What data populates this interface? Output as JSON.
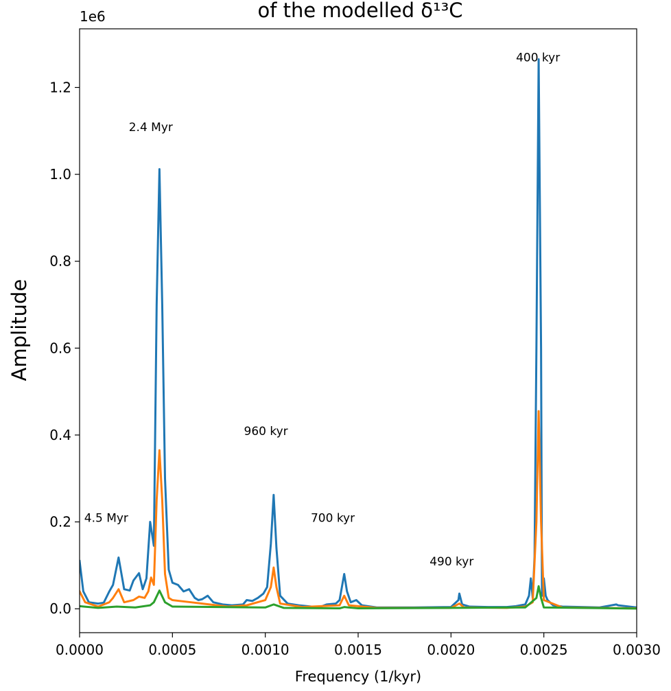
{
  "chart_data": {
    "type": "line",
    "title": "of the modelled δ¹³C",
    "xlabel": "Frequency (1/kyr)",
    "ylabel": "Amplitude",
    "y_offset_text": "1e6",
    "xlim": [
      0.0,
      0.003
    ],
    "ylim": [
      -55000,
      1335000
    ],
    "xticks": [
      0.0,
      0.0005,
      0.001,
      0.0015,
      0.002,
      0.0025,
      0.003
    ],
    "xtick_labels": [
      "0.0000",
      "0.0005",
      "0.0010",
      "0.0015",
      "0.0020",
      "0.0025",
      "0.0030"
    ],
    "yticks": [
      0,
      200000,
      400000,
      600000,
      800000,
      1000000,
      1200000
    ],
    "ytick_labels": [
      "0.0",
      "0.2",
      "0.4",
      "0.6",
      "0.8",
      "1.0",
      "1.2"
    ],
    "grid": false,
    "series": [
      {
        "color": "#1f77b4",
        "points": [
          [
            0.0,
            110000
          ],
          [
            2e-05,
            40000
          ],
          [
            5e-05,
            15000
          ],
          [
            0.0001,
            12000
          ],
          [
            0.00013,
            14000
          ],
          [
            0.00016,
            40000
          ],
          [
            0.00018,
            55000
          ],
          [
            0.00021,
            118000
          ],
          [
            0.00024,
            45000
          ],
          [
            0.00027,
            42000
          ],
          [
            0.00029,
            65000
          ],
          [
            0.00032,
            82000
          ],
          [
            0.00034,
            45000
          ],
          [
            0.00036,
            70000
          ],
          [
            0.00038,
            200000
          ],
          [
            0.0004,
            145000
          ],
          [
            0.000415,
            700000
          ],
          [
            0.00043,
            1012000
          ],
          [
            0.000445,
            700000
          ],
          [
            0.00046,
            300000
          ],
          [
            0.00048,
            90000
          ],
          [
            0.0005,
            60000
          ],
          [
            0.00053,
            55000
          ],
          [
            0.00056,
            40000
          ],
          [
            0.00059,
            45000
          ],
          [
            0.00062,
            25000
          ],
          [
            0.00064,
            20000
          ],
          [
            0.00066,
            22000
          ],
          [
            0.00069,
            30000
          ],
          [
            0.00072,
            15000
          ],
          [
            0.00077,
            10000
          ],
          [
            0.00082,
            8000
          ],
          [
            0.00088,
            10000
          ],
          [
            0.0009,
            20000
          ],
          [
            0.00093,
            18000
          ],
          [
            0.00096,
            25000
          ],
          [
            0.00099,
            35000
          ],
          [
            0.00101,
            50000
          ],
          [
            0.00103,
            150000
          ],
          [
            0.001045,
            262000
          ],
          [
            0.00106,
            140000
          ],
          [
            0.00108,
            30000
          ],
          [
            0.00112,
            12000
          ],
          [
            0.00118,
            8000
          ],
          [
            0.00125,
            5000
          ],
          [
            0.0013,
            5000
          ],
          [
            0.00133,
            10000
          ],
          [
            0.00138,
            12000
          ],
          [
            0.0014,
            20000
          ],
          [
            0.001425,
            80000
          ],
          [
            0.00144,
            40000
          ],
          [
            0.00146,
            15000
          ],
          [
            0.00149,
            20000
          ],
          [
            0.00152,
            8000
          ],
          [
            0.0016,
            3000
          ],
          [
            0.0018,
            3000
          ],
          [
            0.002,
            4000
          ],
          [
            0.00204,
            20000
          ],
          [
            0.002045,
            35000
          ],
          [
            0.00206,
            10000
          ],
          [
            0.0021,
            5000
          ],
          [
            0.0022,
            4000
          ],
          [
            0.0023,
            4000
          ],
          [
            0.00235,
            6000
          ],
          [
            0.0024,
            10000
          ],
          [
            0.00242,
            30000
          ],
          [
            0.00243,
            70000
          ],
          [
            0.00244,
            25000
          ],
          [
            0.00245,
            120000
          ],
          [
            0.00246,
            600000
          ],
          [
            0.002472,
            1265000
          ],
          [
            0.002485,
            600000
          ],
          [
            0.00249,
            30000
          ],
          [
            0.0025,
            70000
          ],
          [
            0.00251,
            30000
          ],
          [
            0.00252,
            20000
          ],
          [
            0.00255,
            8000
          ],
          [
            0.0026,
            5000
          ],
          [
            0.0028,
            3000
          ],
          [
            0.00289,
            10000
          ],
          [
            0.0029,
            8000
          ],
          [
            0.003,
            3000
          ]
        ]
      },
      {
        "color": "#ff7f0e",
        "points": [
          [
            0.0,
            40000
          ],
          [
            3e-05,
            15000
          ],
          [
            0.0001,
            5000
          ],
          [
            0.00016,
            15000
          ],
          [
            0.00018,
            25000
          ],
          [
            0.00021,
            45000
          ],
          [
            0.00024,
            15000
          ],
          [
            0.00029,
            20000
          ],
          [
            0.00032,
            28000
          ],
          [
            0.00035,
            25000
          ],
          [
            0.00037,
            40000
          ],
          [
            0.000385,
            72000
          ],
          [
            0.0004,
            55000
          ],
          [
            0.000415,
            250000
          ],
          [
            0.00043,
            365000
          ],
          [
            0.000445,
            250000
          ],
          [
            0.00046,
            80000
          ],
          [
            0.00048,
            25000
          ],
          [
            0.0005,
            20000
          ],
          [
            0.0006,
            15000
          ],
          [
            0.0007,
            10000
          ],
          [
            0.0008,
            5000
          ],
          [
            0.0009,
            8000
          ],
          [
            0.001,
            20000
          ],
          [
            0.00103,
            50000
          ],
          [
            0.001045,
            95000
          ],
          [
            0.00106,
            50000
          ],
          [
            0.00108,
            12000
          ],
          [
            0.0012,
            4000
          ],
          [
            0.0014,
            8000
          ],
          [
            0.001425,
            30000
          ],
          [
            0.00145,
            8000
          ],
          [
            0.0016,
            2000
          ],
          [
            0.002,
            2000
          ],
          [
            0.002045,
            12000
          ],
          [
            0.00207,
            3000
          ],
          [
            0.0023,
            2000
          ],
          [
            0.0024,
            5000
          ],
          [
            0.00244,
            15000
          ],
          [
            0.00246,
            200000
          ],
          [
            0.002472,
            455000
          ],
          [
            0.002485,
            200000
          ],
          [
            0.0025,
            20000
          ],
          [
            0.0026,
            3000
          ],
          [
            0.003,
            1000
          ]
        ]
      },
      {
        "color": "#2ca02c",
        "points": [
          [
            0.0,
            6000
          ],
          [
            0.0001,
            2000
          ],
          [
            0.0002,
            5000
          ],
          [
            0.0003,
            3000
          ],
          [
            0.00038,
            8000
          ],
          [
            0.0004,
            15000
          ],
          [
            0.00043,
            42000
          ],
          [
            0.00046,
            15000
          ],
          [
            0.0005,
            5000
          ],
          [
            0.001,
            3000
          ],
          [
            0.001045,
            10000
          ],
          [
            0.0011,
            2000
          ],
          [
            0.0014,
            1000
          ],
          [
            0.001425,
            4000
          ],
          [
            0.0015,
            1000
          ],
          [
            0.0024,
            3000
          ],
          [
            0.00246,
            25000
          ],
          [
            0.002472,
            52000
          ],
          [
            0.002485,
            25000
          ],
          [
            0.0025,
            3000
          ],
          [
            0.003,
            500
          ]
        ]
      }
    ],
    "annotations": [
      {
        "text": "4.5 Myr",
        "x": 2.5e-05,
        "y": 200000
      },
      {
        "text": "2.4 Myr",
        "x": 0.000265,
        "y": 1100000
      },
      {
        "text": "960 kyr",
        "x": 0.000885,
        "y": 400000
      },
      {
        "text": "700 kyr",
        "x": 0.001245,
        "y": 200000
      },
      {
        "text": "490 kyr",
        "x": 0.001885,
        "y": 100000
      },
      {
        "text": "400 kyr",
        "x": 0.00235,
        "y": 1260000
      }
    ]
  }
}
